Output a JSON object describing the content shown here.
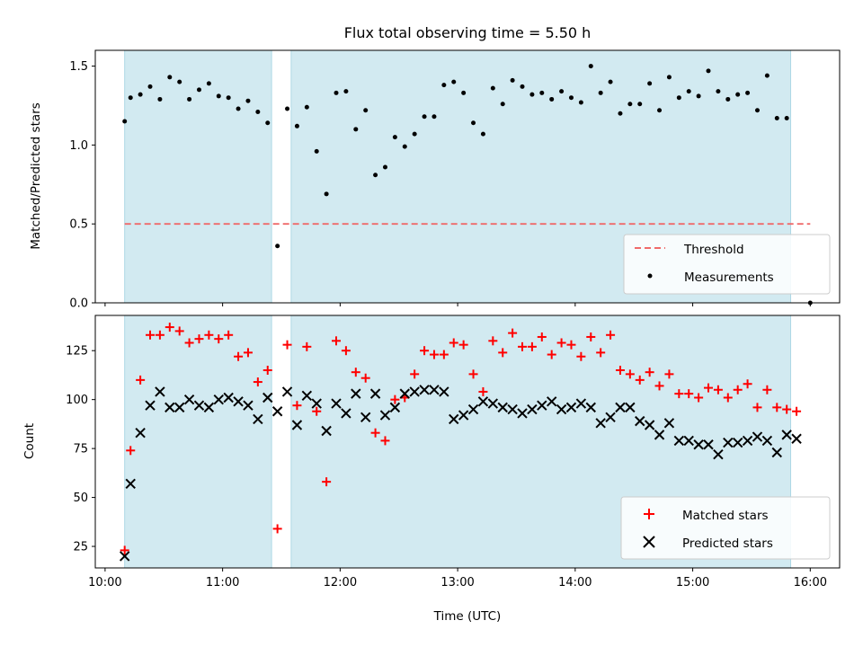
{
  "title": "Flux total observing time = 5.50 h",
  "colors": {
    "shade": "#add8e6",
    "threshold": "#ef6a6a",
    "measurement": "#000000",
    "matched": "#ff0000",
    "predicted": "#000000"
  },
  "chart_data": [
    {
      "type": "scatter",
      "ylabel": "Matched/Predicted stars",
      "ylim": [
        0,
        1.6
      ],
      "yticks": [
        0,
        0.5,
        1.0,
        1.5
      ],
      "ytick_labels": [
        "0.0",
        "0.5",
        "1.0",
        "1.5"
      ],
      "xlim": [
        "09:55",
        "16:15"
      ],
      "shaded_intervals": [
        [
          "10:10",
          "11:25"
        ],
        [
          "11:35",
          "15:50"
        ]
      ],
      "threshold": {
        "name": "Threshold",
        "value": 0.5,
        "x_range": [
          "10:10",
          "16:00"
        ],
        "style": "dashed"
      },
      "legend": {
        "location": "lower right",
        "entries": [
          "Threshold",
          "Measurements"
        ]
      },
      "series": [
        {
          "name": "Measurements",
          "marker": "dot",
          "points": [
            [
              "10:10",
              1.15
            ],
            [
              "10:13",
              1.3
            ],
            [
              "10:18",
              1.32
            ],
            [
              "10:23",
              1.37
            ],
            [
              "10:28",
              1.29
            ],
            [
              "10:33",
              1.43
            ],
            [
              "10:38",
              1.4
            ],
            [
              "10:43",
              1.29
            ],
            [
              "10:48",
              1.35
            ],
            [
              "10:53",
              1.39
            ],
            [
              "10:58",
              1.31
            ],
            [
              "11:03",
              1.3
            ],
            [
              "11:08",
              1.23
            ],
            [
              "11:13",
              1.28
            ],
            [
              "11:18",
              1.21
            ],
            [
              "11:23",
              1.14
            ],
            [
              "11:28",
              0.36
            ],
            [
              "11:33",
              1.23
            ],
            [
              "11:38",
              1.12
            ],
            [
              "11:43",
              1.24
            ],
            [
              "11:48",
              0.96
            ],
            [
              "11:53",
              0.69
            ],
            [
              "11:58",
              1.33
            ],
            [
              "12:03",
              1.34
            ],
            [
              "12:08",
              1.1
            ],
            [
              "12:13",
              1.22
            ],
            [
              "12:18",
              0.81
            ],
            [
              "12:23",
              0.86
            ],
            [
              "12:28",
              1.05
            ],
            [
              "12:33",
              0.99
            ],
            [
              "12:38",
              1.07
            ],
            [
              "12:43",
              1.18
            ],
            [
              "12:48",
              1.18
            ],
            [
              "12:53",
              1.38
            ],
            [
              "12:58",
              1.4
            ],
            [
              "13:03",
              1.33
            ],
            [
              "13:08",
              1.14
            ],
            [
              "13:13",
              1.07
            ],
            [
              "13:18",
              1.36
            ],
            [
              "13:23",
              1.26
            ],
            [
              "13:28",
              1.41
            ],
            [
              "13:33",
              1.37
            ],
            [
              "13:38",
              1.32
            ],
            [
              "13:43",
              1.33
            ],
            [
              "13:48",
              1.29
            ],
            [
              "13:53",
              1.34
            ],
            [
              "13:58",
              1.3
            ],
            [
              "14:03",
              1.27
            ],
            [
              "14:08",
              1.5
            ],
            [
              "14:13",
              1.33
            ],
            [
              "14:18",
              1.4
            ],
            [
              "14:23",
              1.2
            ],
            [
              "14:28",
              1.26
            ],
            [
              "14:33",
              1.26
            ],
            [
              "14:38",
              1.39
            ],
            [
              "14:43",
              1.22
            ],
            [
              "14:48",
              1.43
            ],
            [
              "14:53",
              1.3
            ],
            [
              "14:58",
              1.34
            ],
            [
              "15:03",
              1.31
            ],
            [
              "15:08",
              1.47
            ],
            [
              "15:13",
              1.34
            ],
            [
              "15:18",
              1.29
            ],
            [
              "15:23",
              1.32
            ],
            [
              "15:28",
              1.33
            ],
            [
              "15:33",
              1.22
            ],
            [
              "15:38",
              1.44
            ],
            [
              "15:43",
              1.17
            ],
            [
              "15:48",
              1.17
            ],
            [
              "16:00",
              0.0
            ]
          ]
        }
      ]
    },
    {
      "type": "scatter",
      "xlabel": "Time (UTC)",
      "ylabel": "Count",
      "ylim": [
        14,
        143
      ],
      "yticks": [
        25,
        50,
        75,
        100,
        125
      ],
      "ytick_labels": [
        "25",
        "50",
        "75",
        "100",
        "125"
      ],
      "xlim": [
        "09:55",
        "16:15"
      ],
      "xticks": [
        "10:00",
        "11:00",
        "12:00",
        "13:00",
        "14:00",
        "15:00",
        "16:00"
      ],
      "shaded_intervals": [
        [
          "10:10",
          "11:25"
        ],
        [
          "11:35",
          "15:50"
        ]
      ],
      "legend": {
        "location": "lower right",
        "entries": [
          "Matched stars",
          "Predicted stars"
        ]
      },
      "series": [
        {
          "name": "Matched stars",
          "marker": "plus",
          "points": [
            [
              "10:10",
              23
            ],
            [
              "10:13",
              74
            ],
            [
              "10:18",
              110
            ],
            [
              "10:23",
              133
            ],
            [
              "10:28",
              133
            ],
            [
              "10:33",
              137
            ],
            [
              "10:38",
              135
            ],
            [
              "10:43",
              129
            ],
            [
              "10:48",
              131
            ],
            [
              "10:53",
              133
            ],
            [
              "10:58",
              131
            ],
            [
              "11:03",
              133
            ],
            [
              "11:08",
              122
            ],
            [
              "11:13",
              124
            ],
            [
              "11:18",
              109
            ],
            [
              "11:23",
              115
            ],
            [
              "11:28",
              34
            ],
            [
              "11:33",
              128
            ],
            [
              "11:38",
              97
            ],
            [
              "11:43",
              127
            ],
            [
              "11:48",
              94
            ],
            [
              "11:53",
              58
            ],
            [
              "11:58",
              130
            ],
            [
              "12:03",
              125
            ],
            [
              "12:08",
              114
            ],
            [
              "12:13",
              111
            ],
            [
              "12:18",
              83
            ],
            [
              "12:23",
              79
            ],
            [
              "12:28",
              100
            ],
            [
              "12:33",
              101
            ],
            [
              "12:38",
              113
            ],
            [
              "12:43",
              125
            ],
            [
              "12:48",
              123
            ],
            [
              "12:53",
              123
            ],
            [
              "12:58",
              129
            ],
            [
              "13:03",
              128
            ],
            [
              "13:08",
              113
            ],
            [
              "13:13",
              104
            ],
            [
              "13:18",
              130
            ],
            [
              "13:23",
              124
            ],
            [
              "13:28",
              134
            ],
            [
              "13:33",
              127
            ],
            [
              "13:38",
              127
            ],
            [
              "13:43",
              132
            ],
            [
              "13:48",
              123
            ],
            [
              "13:53",
              129
            ],
            [
              "13:58",
              128
            ],
            [
              "14:03",
              122
            ],
            [
              "14:08",
              132
            ],
            [
              "14:13",
              124
            ],
            [
              "14:18",
              133
            ],
            [
              "14:23",
              115
            ],
            [
              "14:28",
              113
            ],
            [
              "14:33",
              110
            ],
            [
              "14:38",
              114
            ],
            [
              "14:43",
              107
            ],
            [
              "14:48",
              113
            ],
            [
              "14:53",
              103
            ],
            [
              "14:58",
              103
            ],
            [
              "15:03",
              101
            ],
            [
              "15:08",
              106
            ],
            [
              "15:13",
              105
            ],
            [
              "15:18",
              101
            ],
            [
              "15:23",
              105
            ],
            [
              "15:28",
              108
            ],
            [
              "15:33",
              96
            ],
            [
              "15:38",
              105
            ],
            [
              "15:43",
              96
            ],
            [
              "15:48",
              95
            ],
            [
              "15:53",
              94
            ]
          ]
        },
        {
          "name": "Predicted stars",
          "marker": "x",
          "points": [
            [
              "10:10",
              20
            ],
            [
              "10:13",
              57
            ],
            [
              "10:18",
              83
            ],
            [
              "10:23",
              97
            ],
            [
              "10:28",
              104
            ],
            [
              "10:33",
              96
            ],
            [
              "10:38",
              96
            ],
            [
              "10:43",
              100
            ],
            [
              "10:48",
              97
            ],
            [
              "10:53",
              96
            ],
            [
              "10:58",
              100
            ],
            [
              "11:03",
              101
            ],
            [
              "11:08",
              99
            ],
            [
              "11:13",
              97
            ],
            [
              "11:18",
              90
            ],
            [
              "11:23",
              101
            ],
            [
              "11:28",
              94
            ],
            [
              "11:33",
              104
            ],
            [
              "11:38",
              87
            ],
            [
              "11:43",
              102
            ],
            [
              "11:48",
              98
            ],
            [
              "11:53",
              84
            ],
            [
              "11:58",
              98
            ],
            [
              "12:03",
              93
            ],
            [
              "12:08",
              103
            ],
            [
              "12:13",
              91
            ],
            [
              "12:18",
              103
            ],
            [
              "12:23",
              92
            ],
            [
              "12:28",
              96
            ],
            [
              "12:33",
              103
            ],
            [
              "12:38",
              104
            ],
            [
              "12:43",
              105
            ],
            [
              "12:48",
              105
            ],
            [
              "12:53",
              104
            ],
            [
              "12:58",
              90
            ],
            [
              "13:03",
              92
            ],
            [
              "13:08",
              95
            ],
            [
              "13:13",
              99
            ],
            [
              "13:18",
              98
            ],
            [
              "13:23",
              96
            ],
            [
              "13:28",
              95
            ],
            [
              "13:33",
              93
            ],
            [
              "13:38",
              95
            ],
            [
              "13:43",
              97
            ],
            [
              "13:48",
              99
            ],
            [
              "13:53",
              95
            ],
            [
              "13:58",
              96
            ],
            [
              "14:03",
              98
            ],
            [
              "14:08",
              96
            ],
            [
              "14:13",
              88
            ],
            [
              "14:18",
              91
            ],
            [
              "14:23",
              96
            ],
            [
              "14:28",
              96
            ],
            [
              "14:33",
              89
            ],
            [
              "14:38",
              87
            ],
            [
              "14:43",
              82
            ],
            [
              "14:48",
              88
            ],
            [
              "14:53",
              79
            ],
            [
              "14:58",
              79
            ],
            [
              "15:03",
              77
            ],
            [
              "15:08",
              77
            ],
            [
              "15:13",
              72
            ],
            [
              "15:18",
              78
            ],
            [
              "15:23",
              78
            ],
            [
              "15:28",
              79
            ],
            [
              "15:33",
              81
            ],
            [
              "15:38",
              79
            ],
            [
              "15:43",
              73
            ],
            [
              "15:48",
              82
            ],
            [
              "15:53",
              80
            ]
          ]
        }
      ]
    }
  ]
}
